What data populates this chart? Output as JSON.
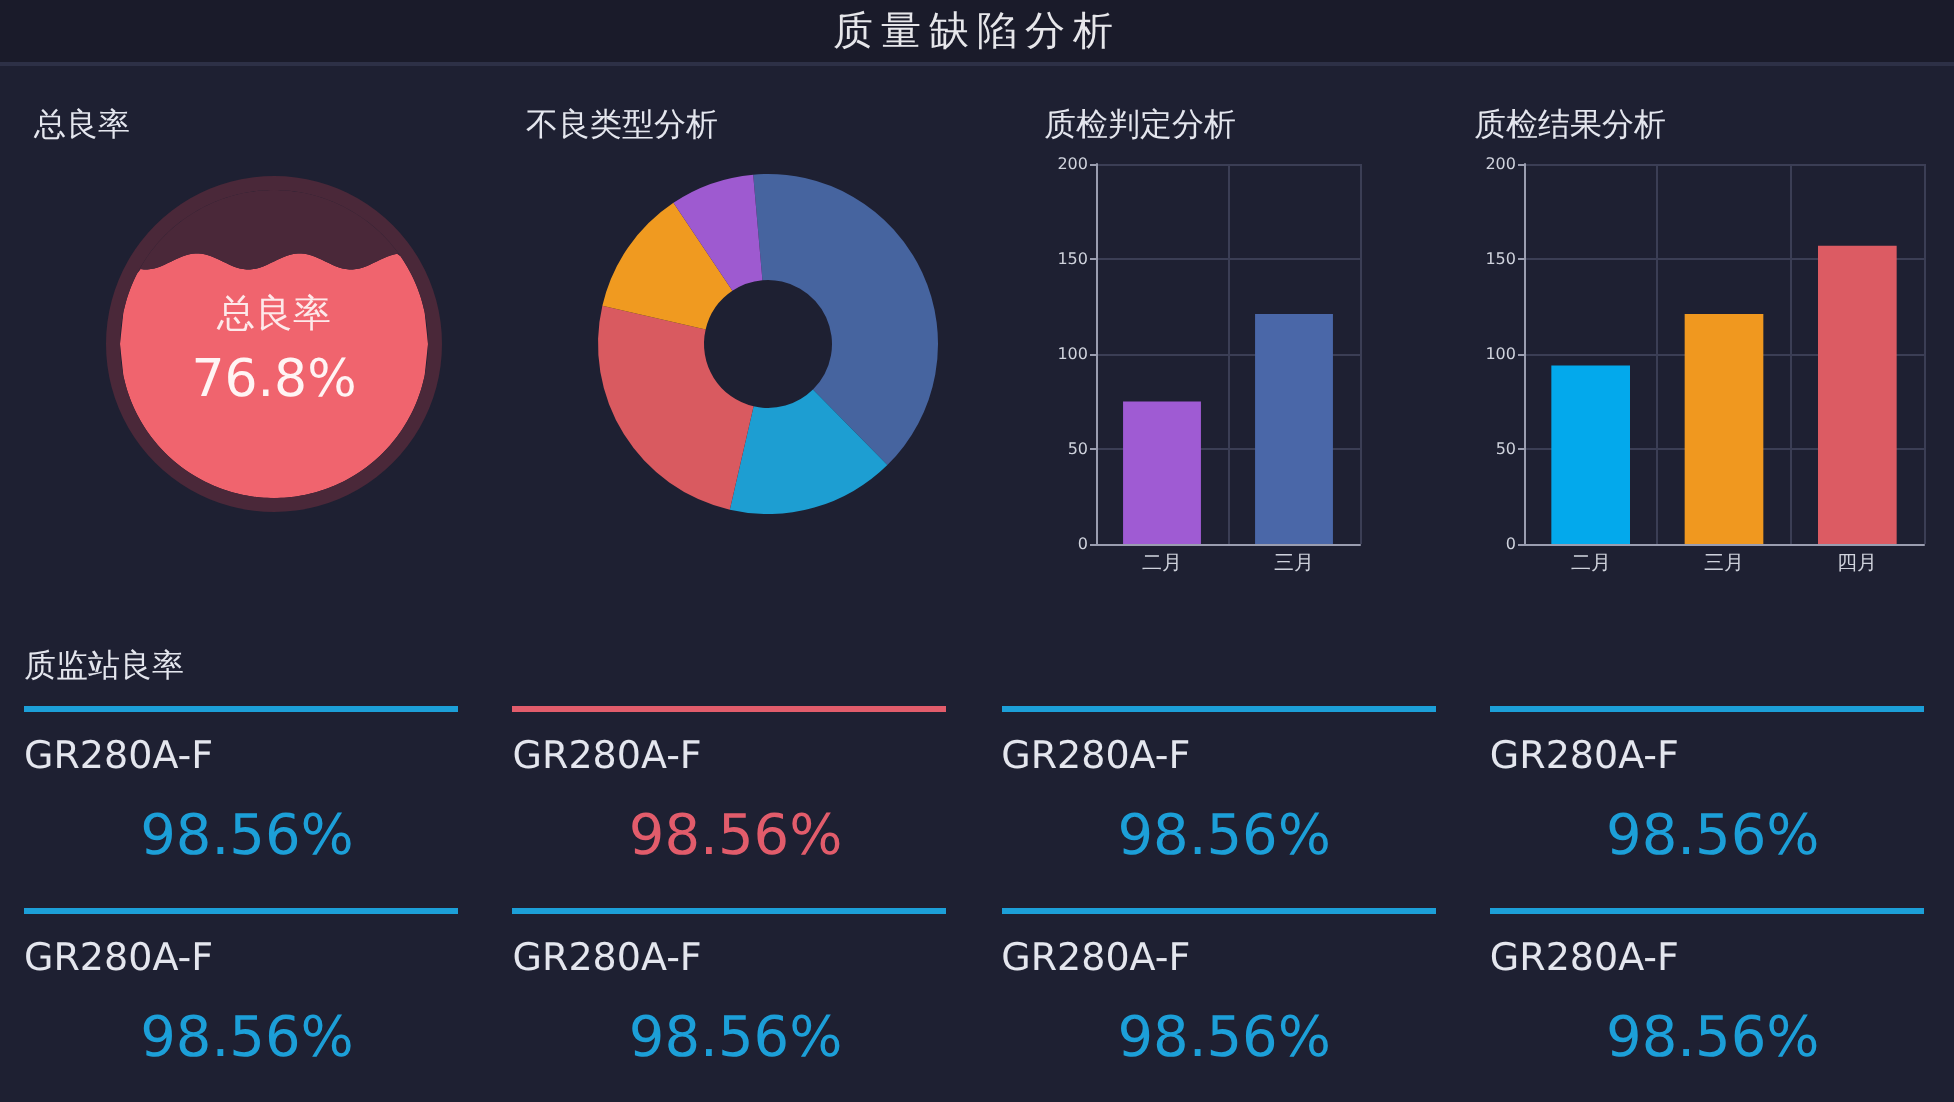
{
  "chart_data": [
    {
      "type": "other",
      "title": "质量缺陷分析"
    },
    {
      "type": "other",
      "title": "总良率",
      "categories": [
        "总良率"
      ],
      "values": [
        76.8
      ],
      "value_labels": [
        "76.8%"
      ],
      "colors": [
        "#f0646e"
      ]
    },
    {
      "type": "donut",
      "title": "不良类型分析",
      "categories": [
        null,
        null,
        null,
        null,
        null
      ],
      "values": [
        39,
        16,
        25,
        12,
        8
      ],
      "colors": [
        "#46649f",
        "#1d9ed2",
        "#d95a60",
        "#f09a20",
        "#9e5ad0"
      ]
    },
    {
      "type": "bar",
      "title": "质检判定分析",
      "categories": [
        "二月",
        "三月"
      ],
      "values": [
        75,
        121
      ],
      "colors": [
        "#9f5bd3",
        "#4a67a8"
      ],
      "ylim": [
        0,
        200
      ],
      "yticks": [
        0,
        50,
        100,
        150,
        200
      ],
      "grid": true
    },
    {
      "type": "bar",
      "title": "质检结果分析",
      "categories": [
        "二月",
        "三月",
        "四月"
      ],
      "values": [
        94,
        121,
        157
      ],
      "colors": [
        "#03a9ec",
        "#f0981f",
        "#dc5b63"
      ],
      "ylim": [
        0,
        200
      ],
      "yticks": [
        0,
        50,
        100,
        150,
        200
      ],
      "grid": true
    },
    {
      "type": "other",
      "title": "质监站良率",
      "categories": [
        "GR280A-F",
        "GR280A-F",
        "GR280A-F",
        "GR280A-F",
        "GR280A-F",
        "GR280A-F",
        "GR280A-F",
        "GR280A-F"
      ],
      "values": [
        98.56,
        98.56,
        98.56,
        98.56,
        98.56,
        98.56,
        98.56,
        98.56
      ],
      "value_labels": [
        "98.56%",
        "98.56%",
        "98.56%",
        "98.56%",
        "98.56%",
        "98.56%",
        "98.56%",
        "98.56%"
      ],
      "colors": [
        "#1c9fd8",
        "#e25c6b",
        "#1c9fd8",
        "#1c9fd8",
        "#1c9fd8",
        "#1c9fd8",
        "#1c9fd8",
        "#1c9fd8"
      ]
    }
  ]
}
